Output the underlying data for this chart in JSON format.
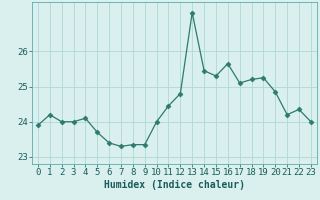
{
  "x": [
    0,
    1,
    2,
    3,
    4,
    5,
    6,
    7,
    8,
    9,
    10,
    11,
    12,
    13,
    14,
    15,
    16,
    17,
    18,
    19,
    20,
    21,
    22,
    23
  ],
  "y": [
    23.9,
    24.2,
    24.0,
    24.0,
    24.1,
    23.7,
    23.4,
    23.3,
    23.35,
    23.35,
    24.0,
    24.45,
    24.8,
    27.1,
    25.45,
    25.3,
    25.65,
    25.1,
    25.2,
    25.25,
    24.85,
    24.2,
    24.35,
    24.0
  ],
  "line_color": "#2d7a6e",
  "marker": "D",
  "marker_size": 2.5,
  "background_color": "#daf0ee",
  "grid_color": "#b0d8d4",
  "xlabel": "Humidex (Indice chaleur)",
  "xlabel_fontsize": 7,
  "tick_fontsize": 6.5,
  "ylim": [
    22.8,
    27.4
  ],
  "yticks": [
    23,
    24,
    25,
    26
  ],
  "xticks": [
    0,
    1,
    2,
    3,
    4,
    5,
    6,
    7,
    8,
    9,
    10,
    11,
    12,
    13,
    14,
    15,
    16,
    17,
    18,
    19,
    20,
    21,
    22,
    23
  ]
}
